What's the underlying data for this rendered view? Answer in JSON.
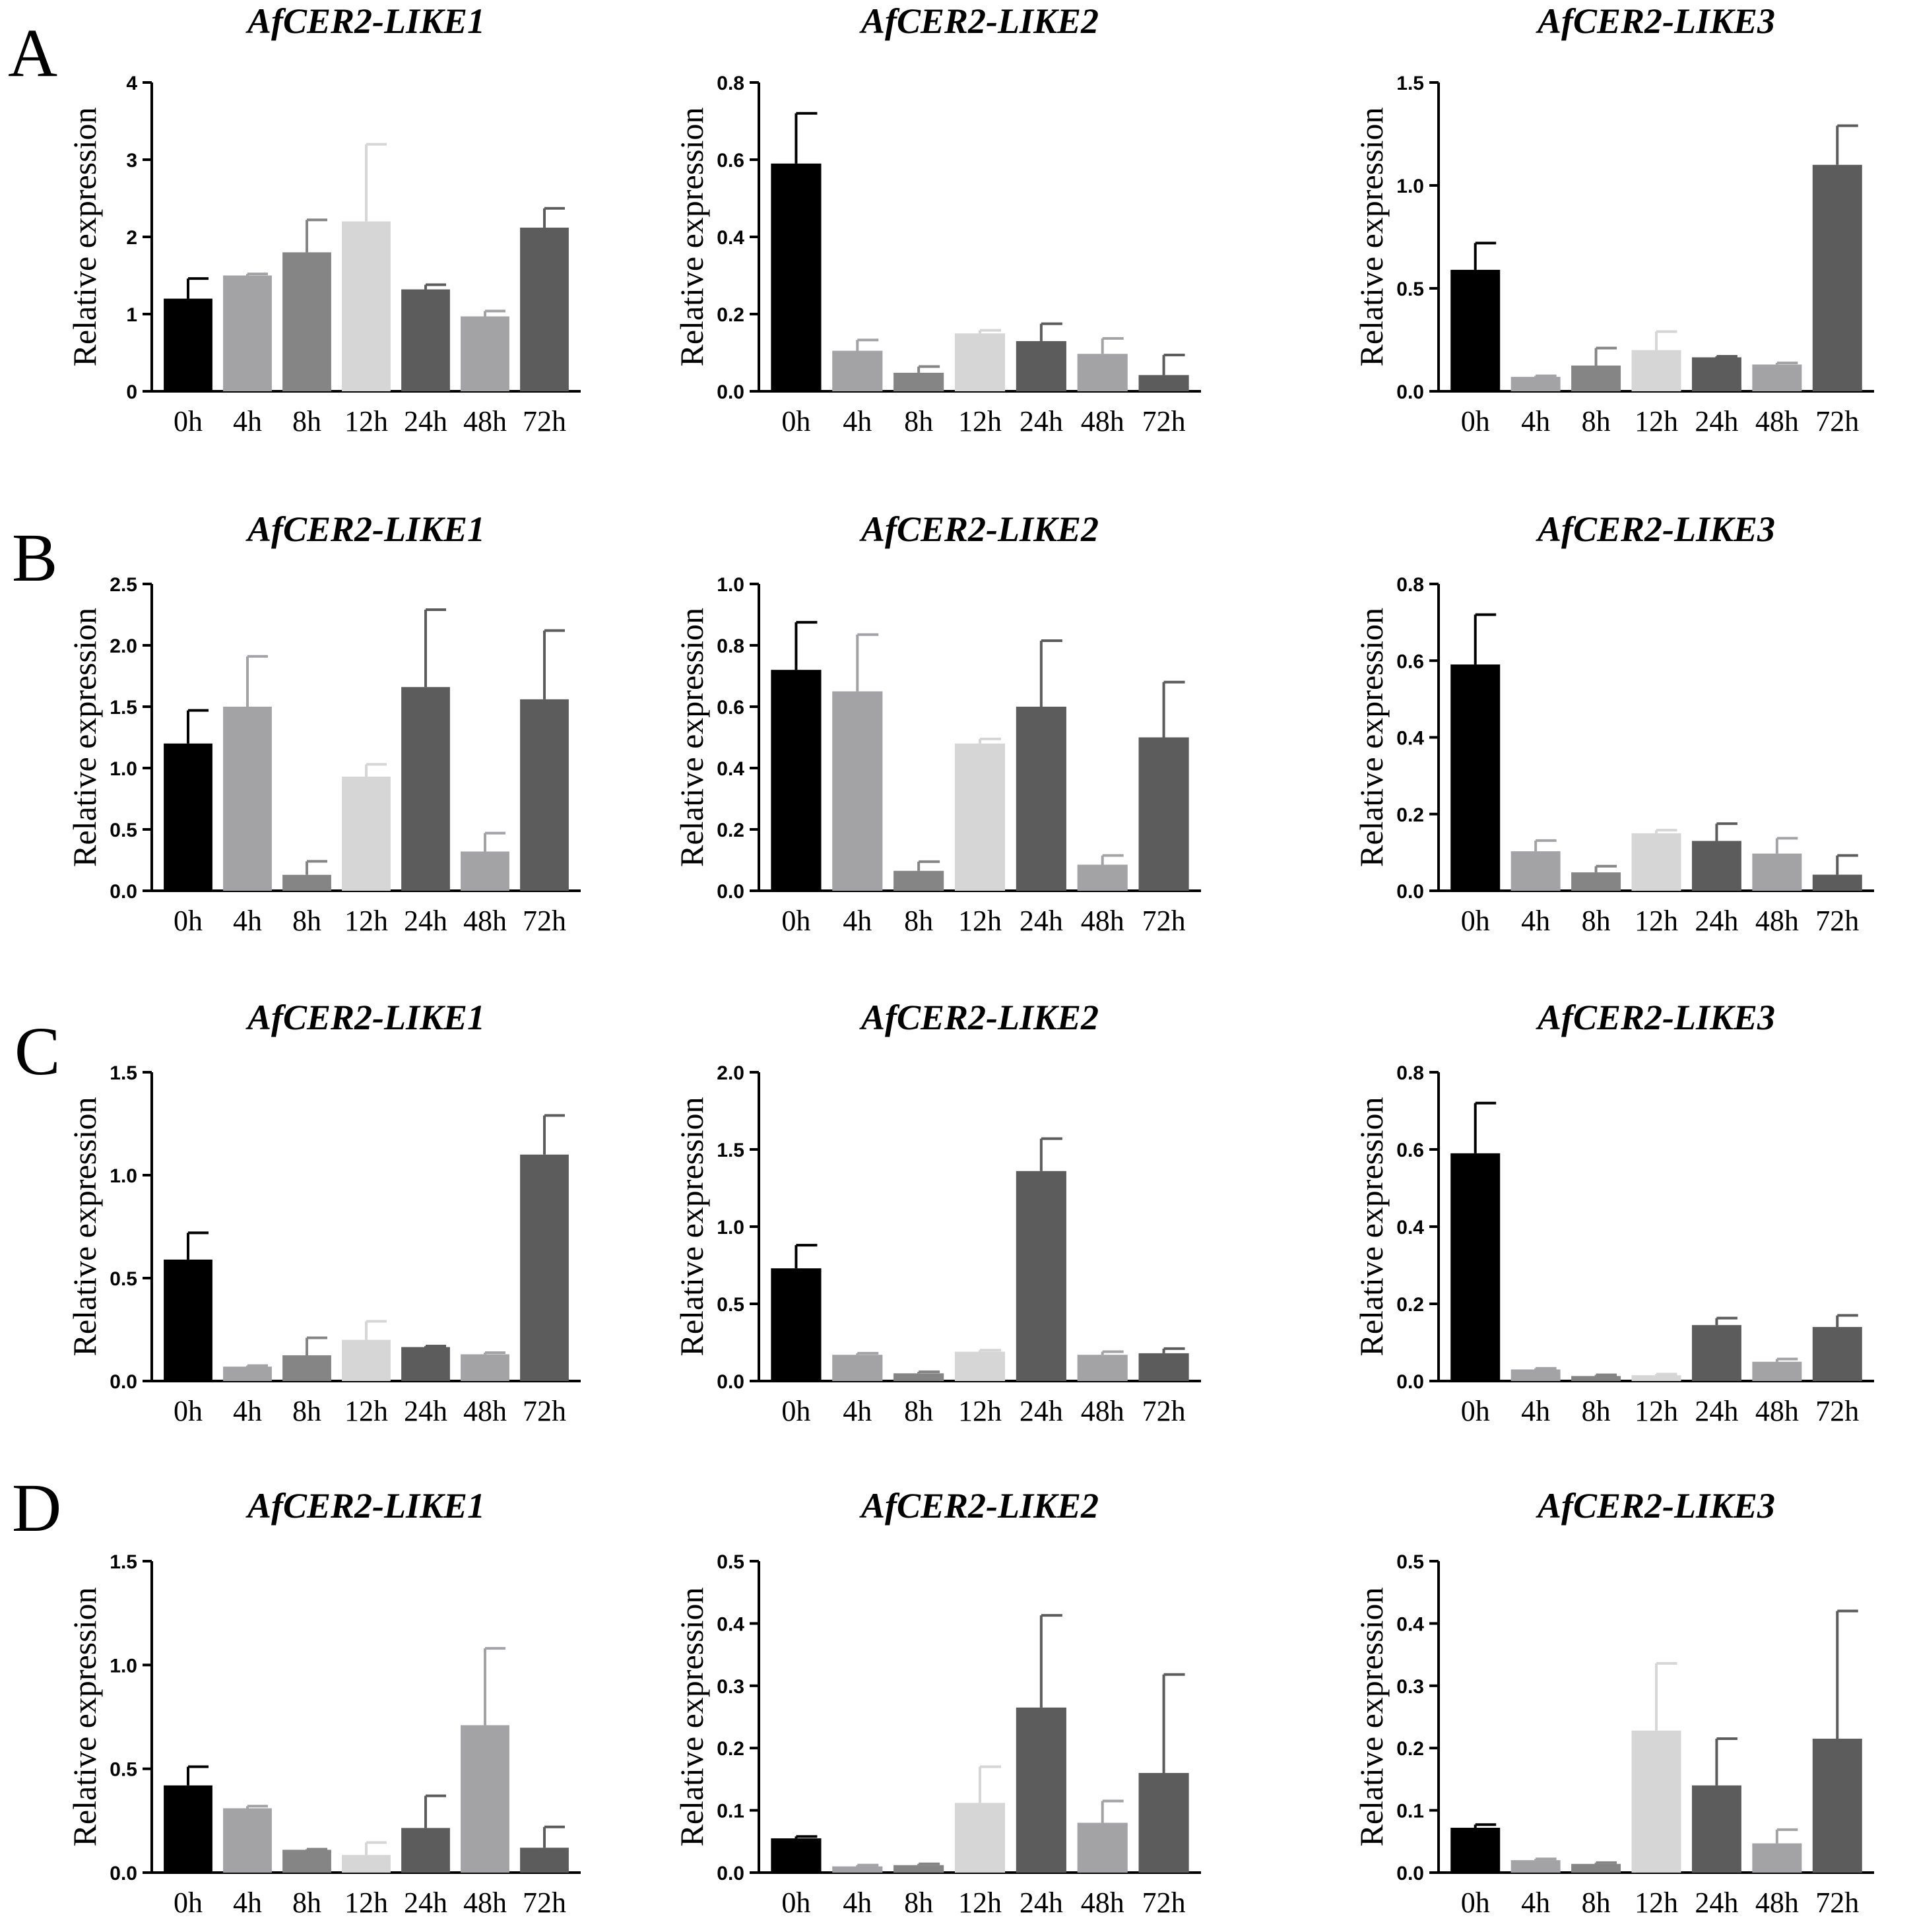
{
  "figure": {
    "rows": [
      {
        "letter": "A"
      },
      {
        "letter": "B"
      },
      {
        "letter": "C"
      },
      {
        "letter": "D"
      }
    ]
  },
  "chart_data": [
    {
      "type": "bar",
      "row": "A",
      "title": "AfCER2-LIKE1",
      "xlabel": "",
      "ylabel": "Relative expression",
      "categories": [
        "0h",
        "4h",
        "8h",
        "12h",
        "24h",
        "48h",
        "72h"
      ],
      "values": [
        1.2,
        1.5,
        1.8,
        2.2,
        1.32,
        0.97,
        2.12
      ],
      "errors": [
        0.26,
        0.02,
        0.42,
        1.0,
        0.06,
        0.07,
        0.25
      ],
      "colors": [
        "#000000",
        "#a3a3a6",
        "#858585",
        "#d6d6d6",
        "#5c5c5c",
        "#a3a3a6",
        "#5c5c5c"
      ],
      "ylim": [
        0,
        4
      ],
      "yticks": [
        "0",
        "1",
        "2",
        "3",
        "4"
      ],
      "grid": false
    },
    {
      "type": "bar",
      "row": "A",
      "title": "AfCER2-LIKE2",
      "xlabel": "",
      "ylabel": "Relative expression",
      "categories": [
        "0h",
        "4h",
        "8h",
        "12h",
        "24h",
        "48h",
        "72h"
      ],
      "values": [
        0.59,
        0.105,
        0.048,
        0.15,
        0.13,
        0.097,
        0.042
      ],
      "errors": [
        0.13,
        0.028,
        0.016,
        0.008,
        0.045,
        0.04,
        0.052
      ],
      "colors": [
        "#000000",
        "#a3a3a6",
        "#858585",
        "#d6d6d6",
        "#5c5c5c",
        "#a3a3a6",
        "#5c5c5c"
      ],
      "ylim": [
        0,
        0.8
      ],
      "yticks": [
        "0.0",
        "0.2",
        "0.4",
        "0.6",
        "0.8"
      ],
      "grid": false
    },
    {
      "type": "bar",
      "row": "A",
      "title": "AfCER2-LIKE3",
      "xlabel": "",
      "ylabel": "Relative expression",
      "categories": [
        "0h",
        "4h",
        "8h",
        "12h",
        "24h",
        "48h",
        "72h"
      ],
      "values": [
        0.59,
        0.07,
        0.125,
        0.2,
        0.165,
        0.13,
        1.1
      ],
      "errors": [
        0.13,
        0.005,
        0.085,
        0.09,
        0.005,
        0.008,
        0.19
      ],
      "colors": [
        "#000000",
        "#a3a3a6",
        "#858585",
        "#d6d6d6",
        "#5c5c5c",
        "#a3a3a6",
        "#5c5c5c"
      ],
      "ylim": [
        0,
        1.5
      ],
      "yticks": [
        "0.0",
        "0.5",
        "1.0",
        "1.5"
      ],
      "grid": false
    },
    {
      "type": "bar",
      "row": "B",
      "title": "AfCER2-LIKE1",
      "xlabel": "",
      "ylabel": "Relative expression",
      "categories": [
        "0h",
        "4h",
        "8h",
        "12h",
        "24h",
        "48h",
        "72h"
      ],
      "values": [
        1.2,
        1.5,
        0.13,
        0.93,
        1.66,
        0.32,
        1.56
      ],
      "errors": [
        0.27,
        0.41,
        0.11,
        0.1,
        0.63,
        0.15,
        0.56
      ],
      "colors": [
        "#000000",
        "#a3a3a6",
        "#858585",
        "#d6d6d6",
        "#5c5c5c",
        "#a3a3a6",
        "#5c5c5c"
      ],
      "ylim": [
        0,
        2.5
      ],
      "yticks": [
        "0.0",
        "0.5",
        "1.0",
        "1.5",
        "2.0",
        "2.5"
      ],
      "grid": false
    },
    {
      "type": "bar",
      "row": "B",
      "title": "AfCER2-LIKE2",
      "xlabel": "",
      "ylabel": "Relative expression",
      "categories": [
        "0h",
        "4h",
        "8h",
        "12h",
        "24h",
        "48h",
        "72h"
      ],
      "values": [
        0.72,
        0.65,
        0.065,
        0.48,
        0.6,
        0.085,
        0.5
      ],
      "errors": [
        0.155,
        0.185,
        0.03,
        0.015,
        0.215,
        0.03,
        0.18
      ],
      "colors": [
        "#000000",
        "#a3a3a6",
        "#858585",
        "#d6d6d6",
        "#5c5c5c",
        "#a3a3a6",
        "#5c5c5c"
      ],
      "ylim": [
        0,
        1.0
      ],
      "yticks": [
        "0.0",
        "0.2",
        "0.4",
        "0.6",
        "0.8",
        "1.0"
      ],
      "grid": false
    },
    {
      "type": "bar",
      "row": "B",
      "title": "AfCER2-LIKE3",
      "xlabel": "",
      "ylabel": "Relative expression",
      "categories": [
        "0h",
        "4h",
        "8h",
        "12h",
        "24h",
        "48h",
        "72h"
      ],
      "values": [
        0.59,
        0.103,
        0.048,
        0.15,
        0.13,
        0.097,
        0.042
      ],
      "errors": [
        0.13,
        0.028,
        0.016,
        0.008,
        0.045,
        0.04,
        0.05
      ],
      "colors": [
        "#000000",
        "#a3a3a6",
        "#858585",
        "#d6d6d6",
        "#5c5c5c",
        "#a3a3a6",
        "#5c5c5c"
      ],
      "ylim": [
        0,
        0.8
      ],
      "yticks": [
        "0.0",
        "0.2",
        "0.4",
        "0.6",
        "0.8"
      ],
      "grid": false
    },
    {
      "type": "bar",
      "row": "C",
      "title": "AfCER2-LIKE1",
      "xlabel": "",
      "ylabel": "Relative expression",
      "categories": [
        "0h",
        "4h",
        "8h",
        "12h",
        "24h",
        "48h",
        "72h"
      ],
      "values": [
        0.59,
        0.07,
        0.125,
        0.2,
        0.165,
        0.13,
        1.1
      ],
      "errors": [
        0.13,
        0.005,
        0.085,
        0.09,
        0.005,
        0.008,
        0.19
      ],
      "colors": [
        "#000000",
        "#a3a3a6",
        "#858585",
        "#d6d6d6",
        "#5c5c5c",
        "#a3a3a6",
        "#5c5c5c"
      ],
      "ylim": [
        0,
        1.5
      ],
      "yticks": [
        "0.0",
        "0.5",
        "1.0",
        "1.5"
      ],
      "grid": false
    },
    {
      "type": "bar",
      "row": "C",
      "title": "AfCER2-LIKE2",
      "xlabel": "",
      "ylabel": "Relative expression",
      "categories": [
        "0h",
        "4h",
        "8h",
        "12h",
        "24h",
        "48h",
        "72h"
      ],
      "values": [
        0.73,
        0.17,
        0.05,
        0.19,
        1.36,
        0.17,
        0.18
      ],
      "errors": [
        0.15,
        0.01,
        0.01,
        0.01,
        0.21,
        0.02,
        0.03
      ],
      "colors": [
        "#000000",
        "#a3a3a6",
        "#858585",
        "#d6d6d6",
        "#5c5c5c",
        "#a3a3a6",
        "#5c5c5c"
      ],
      "ylim": [
        0,
        2.0
      ],
      "yticks": [
        "0.0",
        "0.5",
        "1.0",
        "1.5",
        "2.0"
      ],
      "grid": false
    },
    {
      "type": "bar",
      "row": "C",
      "title": "AfCER2-LIKE3",
      "xlabel": "",
      "ylabel": "Relative expression",
      "categories": [
        "0h",
        "4h",
        "8h",
        "12h",
        "24h",
        "48h",
        "72h"
      ],
      "values": [
        0.59,
        0.03,
        0.013,
        0.015,
        0.145,
        0.05,
        0.14
      ],
      "errors": [
        0.13,
        0.003,
        0.003,
        0.003,
        0.018,
        0.007,
        0.03
      ],
      "colors": [
        "#000000",
        "#a3a3a6",
        "#858585",
        "#d6d6d6",
        "#5c5c5c",
        "#a3a3a6",
        "#5c5c5c"
      ],
      "ylim": [
        0,
        0.8
      ],
      "yticks": [
        "0.0",
        "0.2",
        "0.4",
        "0.6",
        "0.8"
      ],
      "grid": false
    },
    {
      "type": "bar",
      "row": "D",
      "title": "AfCER2-LIKE1",
      "xlabel": "",
      "ylabel": "Relative expression",
      "categories": [
        "0h",
        "4h",
        "8h",
        "12h",
        "24h",
        "48h",
        "72h"
      ],
      "values": [
        0.42,
        0.31,
        0.11,
        0.085,
        0.215,
        0.71,
        0.12
      ],
      "errors": [
        0.09,
        0.01,
        0.003,
        0.06,
        0.155,
        0.37,
        0.1
      ],
      "colors": [
        "#000000",
        "#a3a3a6",
        "#858585",
        "#d6d6d6",
        "#5c5c5c",
        "#a3a3a6",
        "#5c5c5c"
      ],
      "ylim": [
        0,
        1.5
      ],
      "yticks": [
        "0.0",
        "0.5",
        "1.0",
        "1.5"
      ],
      "grid": false
    },
    {
      "type": "bar",
      "row": "D",
      "title": "AfCER2-LIKE2",
      "xlabel": "",
      "ylabel": "Relative expression",
      "categories": [
        "0h",
        "4h",
        "8h",
        "12h",
        "24h",
        "48h",
        "72h"
      ],
      "values": [
        0.055,
        0.01,
        0.012,
        0.112,
        0.265,
        0.08,
        0.16
      ],
      "errors": [
        0.003,
        0.002,
        0.002,
        0.058,
        0.148,
        0.035,
        0.158
      ],
      "colors": [
        "#000000",
        "#a3a3a6",
        "#858585",
        "#d6d6d6",
        "#5c5c5c",
        "#a3a3a6",
        "#5c5c5c"
      ],
      "ylim": [
        0,
        0.5
      ],
      "yticks": [
        "0.0",
        "0.1",
        "0.2",
        "0.3",
        "0.4",
        "0.5"
      ],
      "grid": false
    },
    {
      "type": "bar",
      "row": "D",
      "title": "AfCER2-LIKE3",
      "xlabel": "",
      "ylabel": "Relative expression",
      "categories": [
        "0h",
        "4h",
        "8h",
        "12h",
        "24h",
        "48h",
        "72h"
      ],
      "values": [
        0.072,
        0.02,
        0.014,
        0.228,
        0.14,
        0.047,
        0.215
      ],
      "errors": [
        0.005,
        0.002,
        0.002,
        0.108,
        0.075,
        0.022,
        0.205
      ],
      "colors": [
        "#000000",
        "#a3a3a6",
        "#858585",
        "#d6d6d6",
        "#5c5c5c",
        "#a3a3a6",
        "#5c5c5c"
      ],
      "ylim": [
        0,
        0.5
      ],
      "yticks": [
        "0.0",
        "0.1",
        "0.2",
        "0.3",
        "0.4",
        "0.5"
      ],
      "grid": false
    }
  ]
}
